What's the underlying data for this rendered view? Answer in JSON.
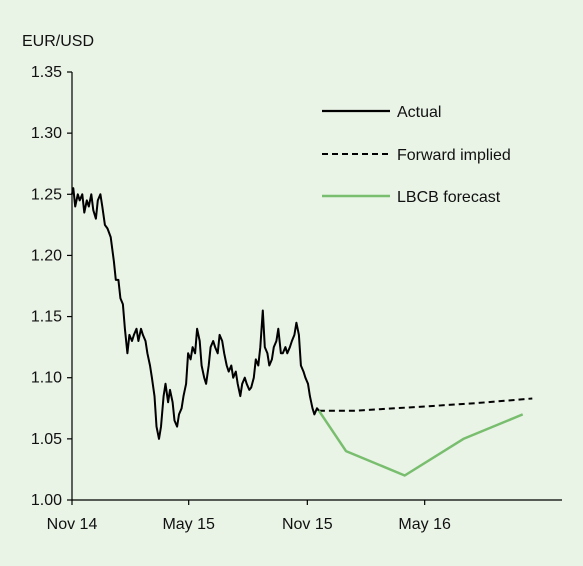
{
  "chart_data": {
    "type": "line",
    "title": "",
    "xlabel": "",
    "ylabel": "EUR/USD",
    "ylim": [
      1.0,
      1.35
    ],
    "yticks": [
      "1.00",
      "1.05",
      "1.10",
      "1.15",
      "1.20",
      "1.25",
      "1.30",
      "1.35"
    ],
    "xlim": [
      "2014-11-01",
      "2016-11-30"
    ],
    "xticks": [
      {
        "label": "Nov 14",
        "date": "2014-11-01"
      },
      {
        "label": "May 15",
        "date": "2015-05-01"
      },
      {
        "label": "Nov 15",
        "date": "2015-11-01"
      },
      {
        "label": "May 16",
        "date": "2016-05-01"
      }
    ],
    "grid": false,
    "legend_position": "top-right",
    "colors": {
      "background": "#e9f3e6",
      "actual": "#000000",
      "forward": "#000000",
      "forecast": "#78be6e",
      "axis": "#000000"
    },
    "series": [
      {
        "name": "Actual",
        "style": "solid",
        "points": [
          [
            "2014-11-01",
            1.25
          ],
          [
            "2014-11-03",
            1.255
          ],
          [
            "2014-11-06",
            1.24
          ],
          [
            "2014-11-10",
            1.25
          ],
          [
            "2014-11-13",
            1.245
          ],
          [
            "2014-11-17",
            1.25
          ],
          [
            "2014-11-20",
            1.235
          ],
          [
            "2014-11-24",
            1.245
          ],
          [
            "2014-11-27",
            1.24
          ],
          [
            "2014-12-01",
            1.25
          ],
          [
            "2014-12-04",
            1.237
          ],
          [
            "2014-12-08",
            1.23
          ],
          [
            "2014-12-11",
            1.245
          ],
          [
            "2014-12-15",
            1.25
          ],
          [
            "2014-12-18",
            1.24
          ],
          [
            "2014-12-22",
            1.225
          ],
          [
            "2014-12-26",
            1.222
          ],
          [
            "2014-12-31",
            1.215
          ],
          [
            "2015-01-05",
            1.195
          ],
          [
            "2015-01-08",
            1.18
          ],
          [
            "2015-01-12",
            1.18
          ],
          [
            "2015-01-15",
            1.165
          ],
          [
            "2015-01-19",
            1.16
          ],
          [
            "2015-01-22",
            1.14
          ],
          [
            "2015-01-26",
            1.12
          ],
          [
            "2015-01-29",
            1.135
          ],
          [
            "2015-02-02",
            1.13
          ],
          [
            "2015-02-05",
            1.135
          ],
          [
            "2015-02-09",
            1.14
          ],
          [
            "2015-02-12",
            1.13
          ],
          [
            "2015-02-16",
            1.14
          ],
          [
            "2015-02-19",
            1.135
          ],
          [
            "2015-02-23",
            1.13
          ],
          [
            "2015-02-26",
            1.12
          ],
          [
            "2015-03-02",
            1.11
          ],
          [
            "2015-03-05",
            1.1
          ],
          [
            "2015-03-09",
            1.085
          ],
          [
            "2015-03-12",
            1.06
          ],
          [
            "2015-03-16",
            1.05
          ],
          [
            "2015-03-19",
            1.06
          ],
          [
            "2015-03-23",
            1.085
          ],
          [
            "2015-03-26",
            1.095
          ],
          [
            "2015-03-30",
            1.08
          ],
          [
            "2015-04-02",
            1.09
          ],
          [
            "2015-04-06",
            1.08
          ],
          [
            "2015-04-09",
            1.065
          ],
          [
            "2015-04-13",
            1.06
          ],
          [
            "2015-04-16",
            1.07
          ],
          [
            "2015-04-20",
            1.075
          ],
          [
            "2015-04-23",
            1.085
          ],
          [
            "2015-04-27",
            1.095
          ],
          [
            "2015-04-30",
            1.12
          ],
          [
            "2015-05-04",
            1.115
          ],
          [
            "2015-05-07",
            1.125
          ],
          [
            "2015-05-11",
            1.12
          ],
          [
            "2015-05-14",
            1.14
          ],
          [
            "2015-05-18",
            1.13
          ],
          [
            "2015-05-21",
            1.11
          ],
          [
            "2015-05-25",
            1.1
          ],
          [
            "2015-05-28",
            1.095
          ],
          [
            "2015-06-01",
            1.11
          ],
          [
            "2015-06-04",
            1.125
          ],
          [
            "2015-06-08",
            1.13
          ],
          [
            "2015-06-11",
            1.125
          ],
          [
            "2015-06-15",
            1.12
          ],
          [
            "2015-06-18",
            1.135
          ],
          [
            "2015-06-22",
            1.13
          ],
          [
            "2015-06-25",
            1.12
          ],
          [
            "2015-06-29",
            1.11
          ],
          [
            "2015-07-02",
            1.105
          ],
          [
            "2015-07-06",
            1.11
          ],
          [
            "2015-07-09",
            1.1
          ],
          [
            "2015-07-13",
            1.105
          ],
          [
            "2015-07-16",
            1.095
          ],
          [
            "2015-07-20",
            1.085
          ],
          [
            "2015-07-23",
            1.095
          ],
          [
            "2015-07-27",
            1.1
          ],
          [
            "2015-07-30",
            1.095
          ],
          [
            "2015-08-03",
            1.09
          ],
          [
            "2015-08-06",
            1.092
          ],
          [
            "2015-08-10",
            1.1
          ],
          [
            "2015-08-13",
            1.115
          ],
          [
            "2015-08-17",
            1.11
          ],
          [
            "2015-08-20",
            1.125
          ],
          [
            "2015-08-24",
            1.155
          ],
          [
            "2015-08-27",
            1.125
          ],
          [
            "2015-08-31",
            1.12
          ],
          [
            "2015-09-03",
            1.11
          ],
          [
            "2015-09-07",
            1.115
          ],
          [
            "2015-09-10",
            1.125
          ],
          [
            "2015-09-14",
            1.13
          ],
          [
            "2015-09-17",
            1.14
          ],
          [
            "2015-09-21",
            1.12
          ],
          [
            "2015-09-24",
            1.12
          ],
          [
            "2015-09-28",
            1.125
          ],
          [
            "2015-10-01",
            1.12
          ],
          [
            "2015-10-05",
            1.125
          ],
          [
            "2015-10-08",
            1.13
          ],
          [
            "2015-10-12",
            1.135
          ],
          [
            "2015-10-15",
            1.145
          ],
          [
            "2015-10-19",
            1.135
          ],
          [
            "2015-10-22",
            1.11
          ],
          [
            "2015-10-26",
            1.105
          ],
          [
            "2015-10-29",
            1.1
          ],
          [
            "2015-11-02",
            1.095
          ],
          [
            "2015-11-05",
            1.085
          ],
          [
            "2015-11-09",
            1.075
          ],
          [
            "2015-11-12",
            1.07
          ],
          [
            "2015-11-16",
            1.075
          ],
          [
            "2015-11-19",
            1.073
          ]
        ]
      },
      {
        "name": "Forward implied",
        "style": "dashed",
        "points": [
          [
            "2015-11-19",
            1.073
          ],
          [
            "2016-01-15",
            1.073
          ],
          [
            "2016-04-15",
            1.076
          ],
          [
            "2016-07-15",
            1.079
          ],
          [
            "2016-10-15",
            1.083
          ]
        ]
      },
      {
        "name": "LBCB forecast",
        "style": "solid",
        "points": [
          [
            "2015-11-19",
            1.073
          ],
          [
            "2015-12-31",
            1.04
          ],
          [
            "2016-03-31",
            1.02
          ],
          [
            "2016-06-30",
            1.05
          ],
          [
            "2016-09-30",
            1.07
          ]
        ]
      }
    ]
  }
}
